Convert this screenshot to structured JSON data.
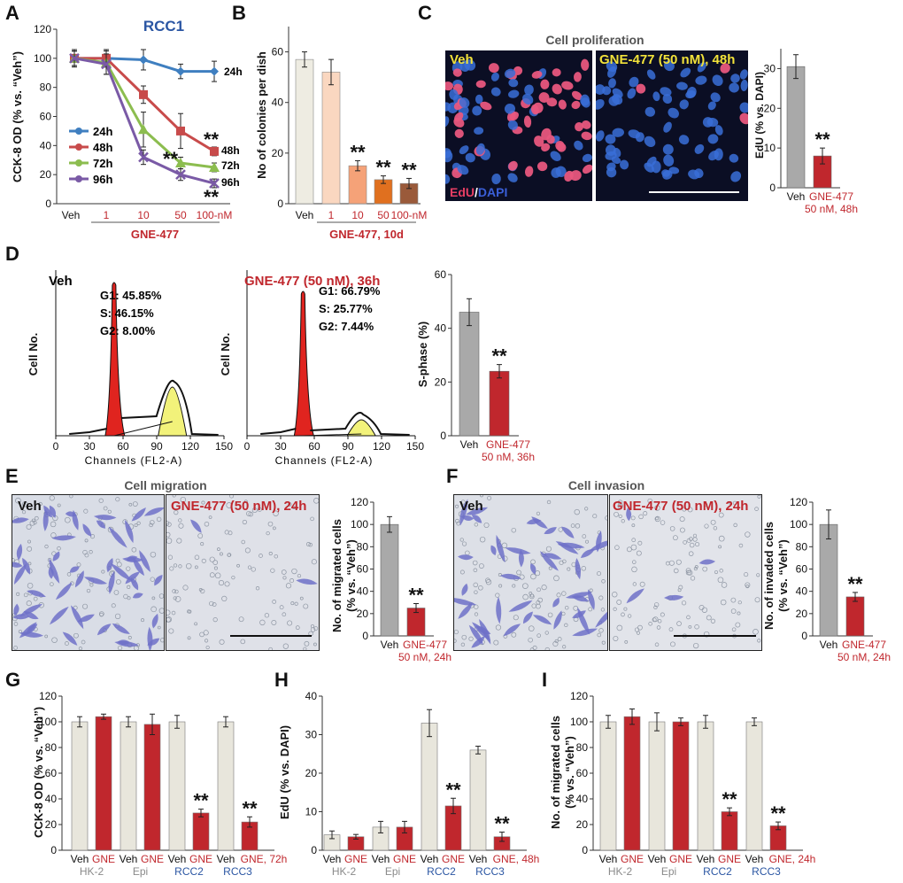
{
  "colors": {
    "red": "#c0272d",
    "blue": "#2b56a3",
    "veh_bar": "#e8e6dc",
    "gray_bar": "#a9a9a9",
    "line_24h": "#3f7fc0",
    "line_48h": "#c84b4b",
    "line_72h": "#8cbd4f",
    "line_96h": "#7a5aa6",
    "colony_veh": "#eeece2",
    "colony_1": "#fad7c0",
    "colony_10": "#f5a278",
    "colony_50": "#e0701f",
    "colony_100": "#9a5a3a"
  },
  "panels": {
    "A": "A",
    "B": "B",
    "C": "C",
    "D": "D",
    "E": "E",
    "F": "F",
    "G": "G",
    "H": "H",
    "I": "I"
  },
  "panelA": {
    "title": "RCC1",
    "ylabel": "CCK-8 OD (% vs. “Veh”)",
    "x_labels": [
      "Veh",
      "1",
      "10",
      "50",
      "100-nM"
    ],
    "group_label": "GNE-477",
    "yticks": [
      "0",
      "20",
      "40",
      "60",
      "80",
      "100",
      "120"
    ],
    "legend": [
      "24h",
      "48h",
      "72h",
      "96h"
    ],
    "end_labels": [
      "24h",
      "48h",
      "72h",
      "96h"
    ],
    "stars": "**"
  },
  "panelB": {
    "ylabel": "No of colonies per dish",
    "yticks": [
      "0",
      "20",
      "40",
      "60"
    ],
    "x_labels": [
      "Veh",
      "1",
      "10",
      "50",
      "100-nM"
    ],
    "group_label": "GNE-477, 10d",
    "stars": "**"
  },
  "panelC": {
    "title": "Cell proliferation",
    "veh_label": "Veh",
    "treat_label": "GNE-477 (50 nM), 48h",
    "stain_edu": "EdU",
    "stain_sep": "/",
    "stain_dapi": "DAPI",
    "ylabel": "EdU (% vs. DAPI)",
    "yticks": [
      "0",
      "10",
      "20",
      "30"
    ],
    "x_veh": "Veh",
    "x_treat_1": "GNE-477",
    "x_treat_2": "50 nM, 48h",
    "stars": "**"
  },
  "panelD": {
    "veh_title": "Veh",
    "treat_title": "GNE-477 (50 nM), 36h",
    "veh_stats": [
      "G1: 45.85%",
      "S: 46.15%",
      "G2: 8.00%"
    ],
    "treat_stats": [
      "G1: 66.79%",
      "S: 25.77%",
      "G2: 7.44%"
    ],
    "ylabel": "Cell No.",
    "xlabel": "Channels (FL2-A)",
    "xticks": [
      "0",
      "30",
      "60",
      "90",
      "120",
      "150"
    ],
    "bar_ylabel": "S-phase (%)",
    "bar_yticks": [
      "0",
      "20",
      "40",
      "60"
    ],
    "x_veh": "Veh",
    "x_treat_1": "GNE-477",
    "x_treat_2": "50 nM, 36h",
    "stars": "**"
  },
  "panelE": {
    "title": "Cell migration",
    "veh_label": "Veh",
    "treat_label": "GNE-477 (50 nM), 24h",
    "ylabel_1": "No. of migrated cells",
    "ylabel_2": "(% vs. “Veh”)",
    "yticks": [
      "0",
      "20",
      "40",
      "60",
      "80",
      "100",
      "120"
    ],
    "x_veh": "Veh",
    "x_treat_1": "GNE-477",
    "x_treat_2": "50 nM, 24h",
    "stars": "**"
  },
  "panelF": {
    "title": "Cell invasion",
    "veh_label": "Veh",
    "treat_label": "GNE-477 (50 nM), 24h",
    "ylabel_1": "No. of invaded cells",
    "ylabel_2": "(% vs. “Veh”)",
    "yticks": [
      "0",
      "20",
      "40",
      "60",
      "80",
      "100",
      "120"
    ],
    "x_veh": "Veh",
    "x_treat_1": "GNE-477",
    "x_treat_2": "50 nM, 24h",
    "stars": "**"
  },
  "panelG": {
    "ylabel": "CCK-8 OD (% vs. “Veh”)",
    "yticks": [
      "0",
      "20",
      "40",
      "60",
      "80",
      "100",
      "120"
    ],
    "pair_labels": [
      "Veh",
      "GNE",
      "Veh",
      "GNE",
      "Veh",
      "GNE",
      "Veh",
      "GNE, 72h"
    ],
    "groups": [
      "HK-2",
      "Epi",
      "RCC2",
      "RCC3"
    ],
    "stars": "**"
  },
  "panelH": {
    "ylabel": "EdU (% vs. DAPI)",
    "yticks": [
      "0",
      "10",
      "20",
      "30",
      "40"
    ],
    "pair_labels": [
      "Veh",
      "GNE",
      "Veh",
      "GNE",
      "Veh",
      "GNE",
      "Veh",
      "GNE, 48h"
    ],
    "groups": [
      "HK-2",
      "Epi",
      "RCC2",
      "RCC3"
    ],
    "stars": "**"
  },
  "panelI": {
    "ylabel_1": "No. of migrated cells",
    "ylabel_2": "(% vs. “Veh”)",
    "yticks": [
      "0",
      "20",
      "40",
      "60",
      "80",
      "100",
      "120"
    ],
    "pair_labels": [
      "Veh",
      "GNE",
      "Veh",
      "GNE",
      "Veh",
      "GNE",
      "Veh",
      "GNE, 24h"
    ],
    "groups": [
      "HK-2",
      "Epi",
      "RCC2",
      "RCC3"
    ],
    "stars": "**"
  },
  "chart_data": [
    {
      "id": "A",
      "type": "line",
      "title": "RCC1",
      "ylabel": "CCK-8 OD (% vs. “Veh”)",
      "ylim": [
        0,
        120
      ],
      "categories": [
        "Veh",
        "1",
        "10",
        "50",
        "100-nM"
      ],
      "series": [
        {
          "name": "24h",
          "values": [
            100,
            100,
            99,
            91,
            91
          ],
          "err": [
            6,
            6,
            7,
            5,
            7
          ]
        },
        {
          "name": "48h",
          "values": [
            100,
            100,
            75,
            50,
            36
          ],
          "err": [
            5,
            6,
            6,
            12,
            3
          ]
        },
        {
          "name": "72h",
          "values": [
            100,
            97,
            51,
            28,
            25
          ],
          "err": [
            5,
            8,
            12,
            4,
            3
          ]
        },
        {
          "name": "96h",
          "values": [
            100,
            96,
            32,
            20,
            14
          ],
          "err": [
            5,
            7,
            5,
            4,
            3
          ]
        }
      ]
    },
    {
      "id": "B",
      "type": "bar",
      "ylabel": "No of colonies per dish",
      "ylim": [
        0,
        70
      ],
      "categories": [
        "Veh",
        "1",
        "10",
        "50",
        "100-nM"
      ],
      "values": [
        57,
        52,
        15,
        9.5,
        8
      ],
      "err": [
        3,
        5,
        2,
        1.5,
        2
      ]
    },
    {
      "id": "C",
      "type": "bar",
      "ylabel": "EdU (% vs. DAPI)",
      "ylim": [
        0,
        35
      ],
      "categories": [
        "Veh",
        "GNE-477 50 nM, 48h"
      ],
      "values": [
        30.5,
        8
      ],
      "err": [
        3,
        2
      ]
    },
    {
      "id": "D_hist_veh",
      "type": "area",
      "title": "Veh",
      "xlabel": "Channels (FL2-A)",
      "ylabel": "Cell No.",
      "xlim": [
        0,
        150
      ],
      "annotations": [
        "G1: 45.85%",
        "S: 46.15%",
        "G2: 8.00%"
      ]
    },
    {
      "id": "D_hist_treat",
      "type": "area",
      "title": "GNE-477 (50 nM), 36h",
      "xlabel": "Channels (FL2-A)",
      "ylabel": "Cell No.",
      "xlim": [
        0,
        150
      ],
      "annotations": [
        "G1: 66.79%",
        "S: 25.77%",
        "G2: 7.44%"
      ]
    },
    {
      "id": "D_bar",
      "type": "bar",
      "ylabel": "S-phase (%)",
      "ylim": [
        0,
        60
      ],
      "categories": [
        "Veh",
        "GNE-477 50 nM, 36h"
      ],
      "values": [
        46,
        24
      ],
      "err": [
        5,
        2.5
      ]
    },
    {
      "id": "E",
      "type": "bar",
      "ylabel": "No. of migrated cells (% vs. “Veh”)",
      "ylim": [
        0,
        120
      ],
      "categories": [
        "Veh",
        "GNE-477 50 nM, 24h"
      ],
      "values": [
        100,
        25
      ],
      "err": [
        7,
        4
      ]
    },
    {
      "id": "F",
      "type": "bar",
      "ylabel": "No. of invaded cells (% vs. “Veh”)",
      "ylim": [
        0,
        120
      ],
      "categories": [
        "Veh",
        "GNE-477 50 nM, 24h"
      ],
      "values": [
        100,
        35
      ],
      "err": [
        13,
        4
      ]
    },
    {
      "id": "G",
      "type": "bar",
      "ylabel": "CCK-8 OD (% vs. “Veh”)",
      "ylim": [
        0,
        120
      ],
      "categories": [
        "HK-2",
        "Epi",
        "RCC2",
        "RCC3"
      ],
      "series": [
        {
          "name": "Veh",
          "values": [
            100,
            100,
            100,
            100
          ],
          "err": [
            4,
            4,
            5,
            4
          ]
        },
        {
          "name": "GNE",
          "values": [
            104,
            98,
            29,
            22
          ],
          "err": [
            2,
            8,
            3,
            4
          ]
        }
      ]
    },
    {
      "id": "H",
      "type": "bar",
      "ylabel": "EdU (% vs. DAPI)",
      "ylim": [
        0,
        40
      ],
      "categories": [
        "HK-2",
        "Epi",
        "RCC2",
        "RCC3"
      ],
      "series": [
        {
          "name": "Veh",
          "values": [
            4,
            6,
            33,
            26
          ],
          "err": [
            1,
            1.5,
            3.5,
            1
          ]
        },
        {
          "name": "GNE",
          "values": [
            3.5,
            6,
            11.5,
            3.5
          ],
          "err": [
            0.6,
            1.5,
            2,
            1.2
          ]
        }
      ]
    },
    {
      "id": "I",
      "type": "bar",
      "ylabel": "No. of migrated cells (% vs. “Veh”)",
      "ylim": [
        0,
        120
      ],
      "categories": [
        "HK-2",
        "Epi",
        "RCC2",
        "RCC3"
      ],
      "series": [
        {
          "name": "Veh",
          "values": [
            100,
            100,
            100,
            100
          ],
          "err": [
            5,
            7,
            5,
            3
          ]
        },
        {
          "name": "GNE",
          "values": [
            104,
            100,
            30,
            19
          ],
          "err": [
            6,
            3,
            3,
            3
          ]
        }
      ]
    }
  ]
}
